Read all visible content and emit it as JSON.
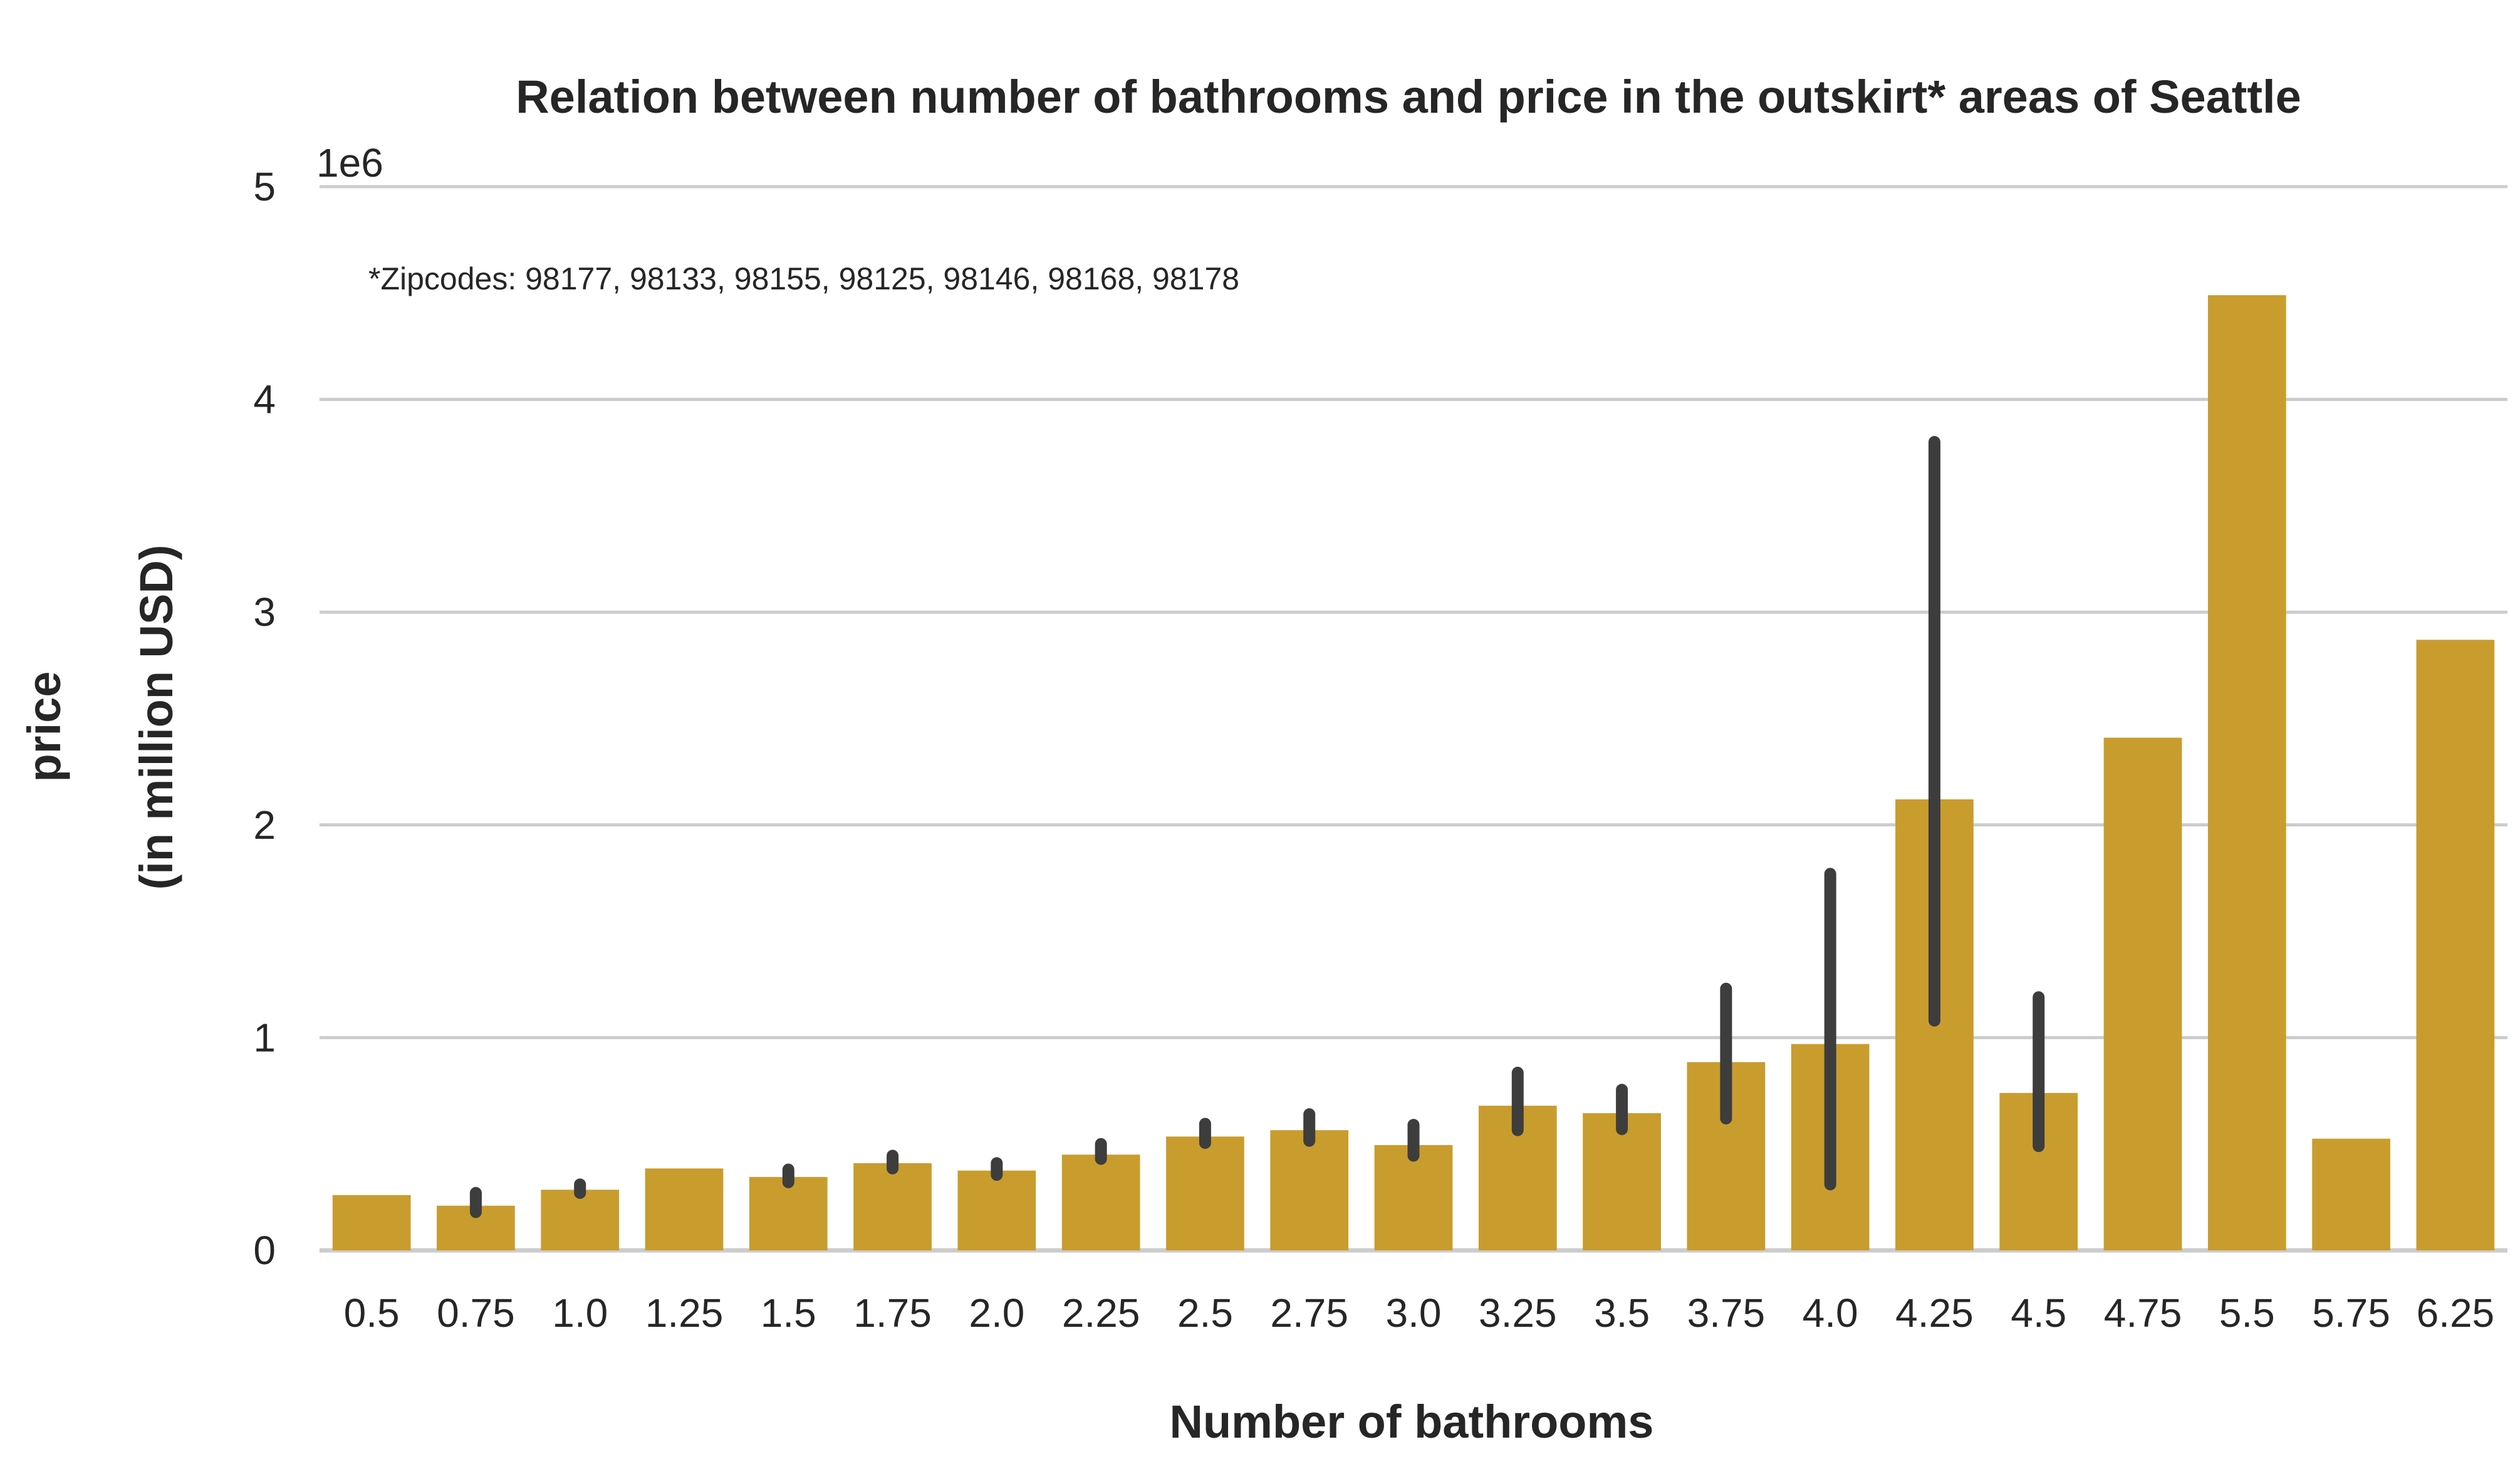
{
  "chart_data": {
    "type": "bar",
    "title": "Relation between number of bathrooms and price in the outskirt* areas of Seattle",
    "xlabel": "Number of bathrooms",
    "ylabel_line1": "price",
    "ylabel_line2": "(in million USD)",
    "y_offset_label": "1e6",
    "annotation": "*Zipcodes: 98177, 98133, 98155, 98125, 98146, 98168, 98178",
    "ylim": [
      0,
      5000000
    ],
    "y_ticks": [
      0,
      1000000,
      2000000,
      3000000,
      4000000,
      5000000
    ],
    "y_tick_labels": [
      "0",
      "1",
      "2",
      "3",
      "4",
      "5"
    ],
    "grid": "horizontal",
    "bar_color": "#c99c2e",
    "errorbar_color": "#3d3d3d",
    "gridline_color": "#cccccc",
    "categories": [
      "0.5",
      "0.75",
      "1.0",
      "1.25",
      "1.5",
      "1.75",
      "2.0",
      "2.25",
      "2.5",
      "2.75",
      "3.0",
      "3.25",
      "3.5",
      "3.75",
      "4.0",
      "4.25",
      "4.5",
      "4.75",
      "5.5",
      "5.75",
      "6.25"
    ],
    "values": [
      260000,
      210000,
      285000,
      385000,
      345000,
      410000,
      375000,
      450000,
      535000,
      565000,
      495000,
      680000,
      645000,
      885000,
      970000,
      2120000,
      740000,
      2410000,
      4490000,
      525000,
      2870000
    ],
    "ci_lower": [
      null,
      180000,
      270000,
      null,
      320000,
      385000,
      355000,
      430000,
      505000,
      515000,
      445000,
      565000,
      570000,
      620000,
      310000,
      1080000,
      490000,
      null,
      null,
      null,
      null
    ],
    "ci_upper": [
      null,
      270000,
      310000,
      null,
      380000,
      445000,
      410000,
      500000,
      595000,
      640000,
      590000,
      835000,
      755000,
      1230000,
      1770000,
      3800000,
      1190000,
      null,
      null,
      null,
      null
    ]
  }
}
